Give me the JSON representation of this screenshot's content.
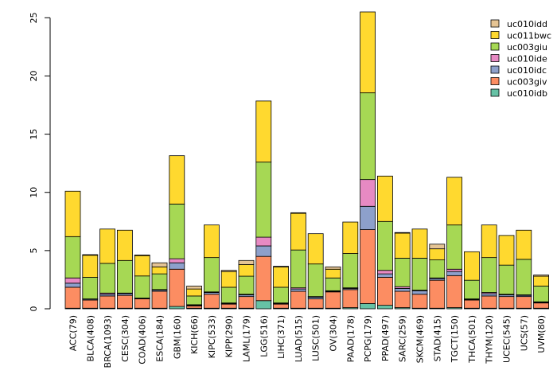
{
  "chart_data": {
    "type": "bar",
    "stacked": true,
    "title": "",
    "xlabel": "",
    "ylabel": "",
    "ylim": [
      0,
      25.5
    ],
    "yticks": [
      "0",
      "5",
      "10",
      "15",
      "20",
      "25"
    ],
    "grid": false,
    "legend_position": "top-right",
    "categories": [
      "ACC(79)",
      "BLCA(408)",
      "BRCA(1093)",
      "CESC(304)",
      "COAD(406)",
      "ESCA(184)",
      "GBM(160)",
      "KICH(66)",
      "KIPC(533)",
      "KIPP(290)",
      "LAML(179)",
      "LGG(516)",
      "LIHC(371)",
      "LUAD(515)",
      "LUSC(501)",
      "OV(304)",
      "PAAD(178)",
      "PCPG(179)",
      "PPAD(497)",
      "SARC(259)",
      "SKCM(469)",
      "STAD(415)",
      "TGCT(150)",
      "THCA(501)",
      "THYM(120)",
      "UCEC(545)",
      "UCS(57)",
      "UVM(80)"
    ],
    "series": [
      {
        "name": "uc010idb",
        "color": "#66c2a5",
        "values": [
          0.05,
          0.05,
          0.05,
          0.05,
          0.05,
          0.05,
          0.2,
          0.05,
          0.05,
          0.05,
          0.05,
          0.7,
          0.05,
          0.05,
          0.05,
          0.05,
          0.1,
          0.45,
          0.3,
          0.1,
          0.05,
          0.05,
          0.1,
          0.05,
          0.05,
          0.05,
          0.05,
          0.05
        ]
      },
      {
        "name": "uc003giv",
        "color": "#fc8d62",
        "values": [
          1.8,
          0.7,
          1.05,
          1.1,
          0.8,
          1.45,
          3.2,
          0.2,
          1.2,
          0.35,
          1.0,
          3.8,
          0.35,
          1.45,
          0.8,
          1.4,
          1.55,
          6.35,
          2.4,
          1.4,
          1.2,
          2.4,
          2.75,
          0.7,
          1.05,
          1.0,
          1.0,
          0.45
        ]
      },
      {
        "name": "uc010idc",
        "color": "#8da0cb",
        "values": [
          0.35,
          0.08,
          0.15,
          0.15,
          0.05,
          0.1,
          0.55,
          0.05,
          0.15,
          0.05,
          0.15,
          0.9,
          0.05,
          0.2,
          0.15,
          0.05,
          0.1,
          2.0,
          0.3,
          0.25,
          0.3,
          0.15,
          0.35,
          0.05,
          0.2,
          0.15,
          0.1,
          0.05
        ]
      },
      {
        "name": "uc010ide",
        "color": "#e78ac3",
        "values": [
          0.45,
          0.02,
          0.1,
          0.05,
          0.02,
          0.05,
          0.35,
          0.05,
          0.05,
          0.05,
          0.05,
          0.75,
          0.05,
          0.1,
          0.05,
          0.05,
          0.05,
          2.3,
          0.3,
          0.15,
          0.05,
          0.05,
          0.2,
          0.05,
          0.1,
          0.05,
          0.05,
          0.05
        ]
      },
      {
        "name": "uc003giu",
        "color": "#a6d854",
        "values": [
          3.55,
          1.85,
          2.55,
          2.8,
          1.9,
          1.35,
          4.7,
          0.75,
          2.95,
          1.35,
          1.55,
          6.45,
          1.35,
          3.25,
          2.8,
          1.1,
          2.95,
          7.45,
          4.2,
          2.45,
          2.75,
          1.55,
          3.8,
          1.6,
          3.0,
          2.5,
          3.05,
          1.35
        ]
      },
      {
        "name": "uc011bwc",
        "color": "#ffd92f",
        "values": [
          3.9,
          1.9,
          2.95,
          2.6,
          1.75,
          0.6,
          4.15,
          0.6,
          2.8,
          1.35,
          1.0,
          5.25,
          1.75,
          3.15,
          2.6,
          0.75,
          2.7,
          6.95,
          3.9,
          2.15,
          2.5,
          0.95,
          4.1,
          2.45,
          2.8,
          2.55,
          2.5,
          0.85
        ]
      },
      {
        "name": "uc010idd",
        "color": "#e5c494",
        "values": [
          0.0,
          0.05,
          0.0,
          0.0,
          0.05,
          0.35,
          0.0,
          0.25,
          0.0,
          0.1,
          0.35,
          0.0,
          0.05,
          0.05,
          0.0,
          0.2,
          0.0,
          0.0,
          0.0,
          0.05,
          0.0,
          0.4,
          0.0,
          0.0,
          0.0,
          0.0,
          0.0,
          0.1
        ]
      }
    ]
  }
}
